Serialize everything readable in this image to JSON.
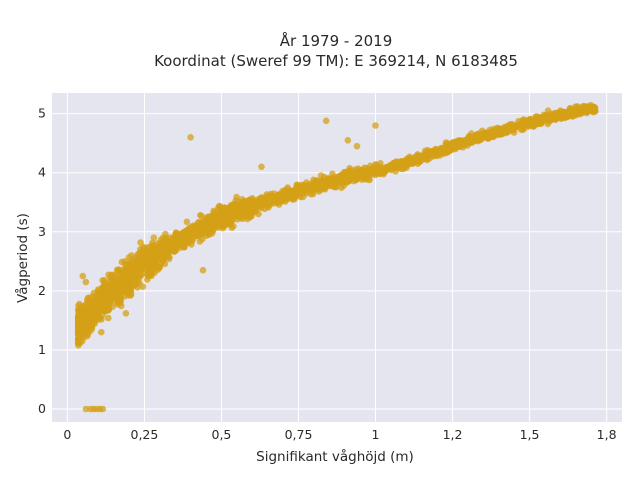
{
  "colors": {
    "plot_bg": "#e5e5ef",
    "grid": "#ffffff",
    "marker": "#d4a017",
    "text": "#2a2a2a"
  },
  "chart_data": {
    "type": "scatter",
    "title": "År 1979 - 2019",
    "subtitle": "Koordinat (Sweref 99 TM): E 369214, N 6183485",
    "xlabel": "Signifikant våghöjd (m)",
    "ylabel": "Vågperiod (s)",
    "xlim": [
      -0.05,
      1.8
    ],
    "ylim": [
      -0.22,
      5.35
    ],
    "xticks": [
      0,
      0.25,
      0.5,
      0.75,
      1,
      1.25,
      1.5,
      1.75
    ],
    "xtick_labels": [
      "0",
      "0,25",
      "0,5",
      "0,75",
      "1",
      "1,2",
      "1,5",
      "1,8"
    ],
    "yticks": [
      0,
      1,
      2,
      3,
      4,
      5
    ],
    "ytick_labels": [
      "0",
      "1",
      "2",
      "3",
      "4",
      "5"
    ],
    "grid": true,
    "series": [
      {
        "marker_color": "#d4a017",
        "dense_cloud_curve": [
          [
            0.04,
            1.42
          ],
          [
            0.06,
            1.55
          ],
          [
            0.08,
            1.62
          ],
          [
            0.1,
            1.72
          ],
          [
            0.12,
            1.85
          ],
          [
            0.15,
            2.0
          ],
          [
            0.18,
            2.15
          ],
          [
            0.2,
            2.25
          ],
          [
            0.25,
            2.45
          ],
          [
            0.3,
            2.65
          ],
          [
            0.35,
            2.82
          ],
          [
            0.4,
            2.97
          ],
          [
            0.5,
            3.22
          ],
          [
            0.6,
            3.43
          ],
          [
            0.7,
            3.61
          ],
          [
            0.8,
            3.77
          ],
          [
            0.9,
            3.9
          ],
          [
            1.0,
            4.03
          ],
          [
            1.1,
            4.17
          ],
          [
            1.2,
            4.35
          ],
          [
            1.3,
            4.55
          ],
          [
            1.4,
            4.7
          ],
          [
            1.5,
            4.85
          ],
          [
            1.6,
            4.98
          ],
          [
            1.7,
            5.08
          ]
        ],
        "outliers": [
          [
            0.4,
            4.6
          ],
          [
            0.84,
            4.88
          ],
          [
            1.0,
            4.8
          ],
          [
            0.91,
            4.55
          ],
          [
            0.94,
            4.45
          ],
          [
            0.63,
            4.1
          ],
          [
            0.25,
            2.72
          ],
          [
            0.44,
            2.35
          ],
          [
            0.3,
            2.4
          ],
          [
            0.19,
            1.62
          ],
          [
            0.11,
            1.3
          ],
          [
            0.05,
            2.25
          ],
          [
            0.06,
            2.15
          ],
          [
            0.62,
            3.3
          ],
          [
            0.52,
            3.15
          ],
          [
            1.56,
            5.05
          ],
          [
            1.6,
            5.05
          ],
          [
            1.63,
            5.02
          ],
          [
            1.68,
            5.08
          ],
          [
            1.71,
            5.1
          ],
          [
            1.52,
            4.95
          ],
          [
            1.48,
            4.9
          ],
          [
            1.43,
            4.75
          ]
        ],
        "zero_period_points": [
          [
            0.06,
            0.0
          ],
          [
            0.075,
            0.0
          ],
          [
            0.085,
            0.0
          ],
          [
            0.095,
            0.0
          ],
          [
            0.105,
            0.0
          ],
          [
            0.115,
            0.0
          ]
        ]
      }
    ]
  }
}
